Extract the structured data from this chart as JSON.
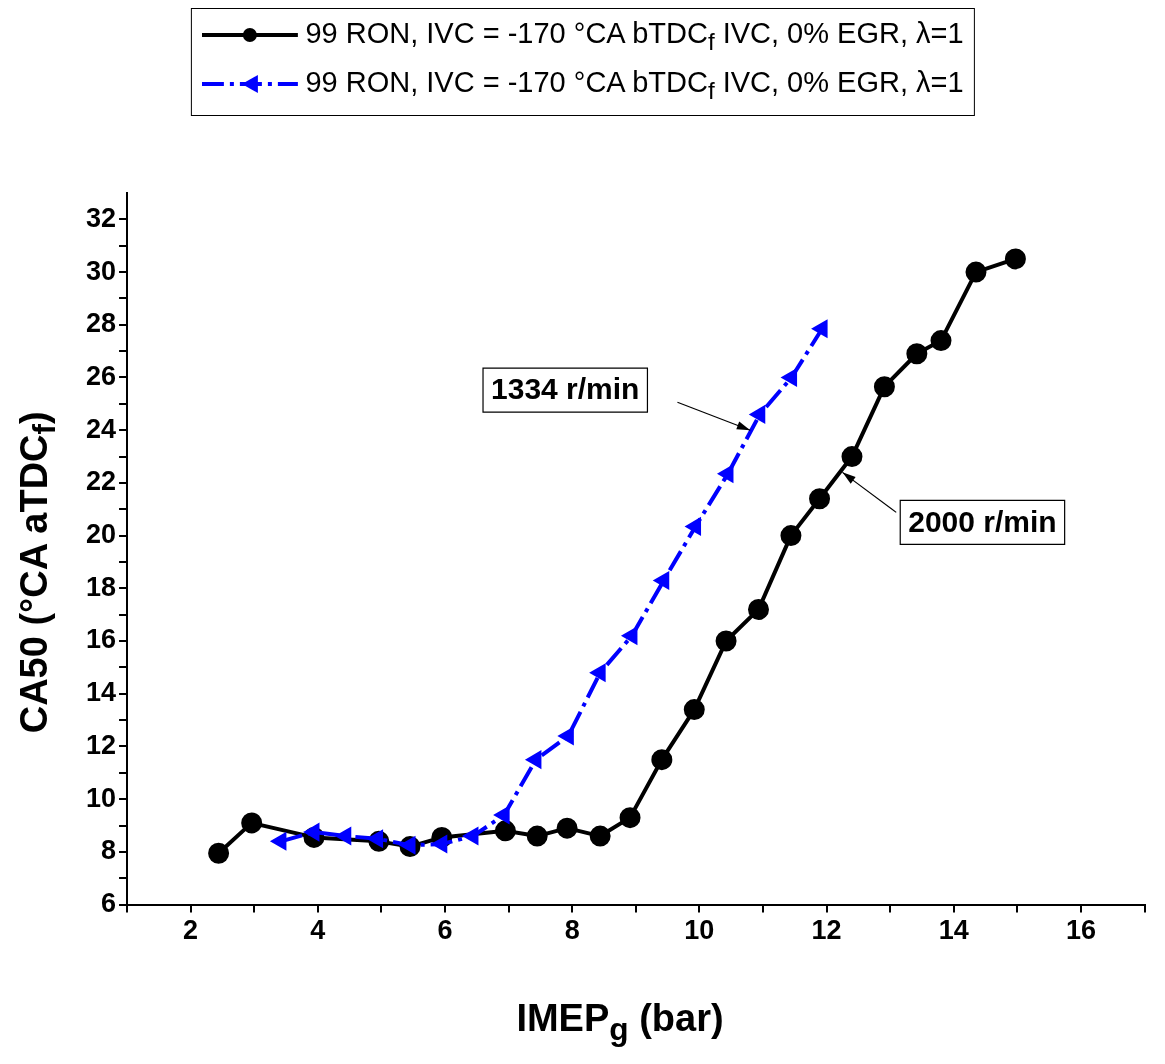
{
  "chart_data": {
    "type": "line",
    "xlabel": "IMEP$_{g}$ (bar)",
    "ylabel": "CA50 (°CA aTDC$_{f}$)",
    "xlim": [
      1,
      17
    ],
    "xticks": [
      {
        "value": 1,
        "label": null
      },
      2,
      {
        "value": 3,
        "label": null
      },
      4,
      {
        "value": 5,
        "label": null
      },
      6,
      {
        "value": 7,
        "label": null
      },
      8,
      {
        "value": 9,
        "label": null
      },
      10,
      {
        "value": 11,
        "label": null
      },
      12,
      {
        "value": 13,
        "label": null
      },
      14,
      {
        "value": 15,
        "label": null
      },
      16,
      {
        "value": 17,
        "label": null
      }
    ],
    "ylim": [
      6,
      33
    ],
    "yticks": [
      6,
      {
        "value": 7,
        "label": null
      },
      8,
      {
        "value": 9,
        "label": null
      },
      10,
      {
        "value": 11,
        "label": null
      },
      12,
      {
        "value": 13,
        "label": null
      },
      14,
      {
        "value": 15,
        "label": null
      },
      16,
      {
        "value": 17,
        "label": null
      },
      18,
      {
        "value": 19,
        "label": null
      },
      20,
      {
        "value": 21,
        "label": null
      },
      22,
      {
        "value": 23,
        "label": null
      },
      24,
      {
        "value": 25,
        "label": null
      },
      26,
      {
        "value": 27,
        "label": null
      },
      28,
      {
        "value": 29,
        "label": null
      },
      30,
      {
        "value": 31,
        "label": null
      },
      32
    ],
    "grid": false,
    "legend": "top",
    "series": [
      {
        "name": "99 RON, IVC = -170 °CA bTDC$_{f}$ IVC, 0% EGR, λ=1",
        "color": "#000000",
        "marker": "circle",
        "line_style": "solid",
        "x": [
          2.44,
          2.96,
          3.94,
          4.96,
          5.45,
          5.95,
          6.95,
          7.45,
          7.92,
          8.44,
          8.91,
          9.41,
          9.92,
          10.42,
          10.93,
          11.44,
          11.89,
          12.4,
          12.91,
          13.42,
          13.8,
          14.35,
          14.97
        ],
        "values": [
          7.95,
          9.1,
          8.55,
          8.4,
          8.2,
          8.55,
          8.8,
          8.6,
          8.9,
          8.6,
          9.3,
          11.5,
          13.4,
          16.0,
          17.2,
          20.0,
          21.4,
          23.0,
          25.65,
          26.9,
          27.4,
          30.0,
          30.5
        ]
      },
      {
        "name": "99 RON, IVC = -170 °CA bTDC$_{f}$ IVC, 0% EGR, λ=1",
        "color": "#0000ff",
        "marker": "triangle",
        "line_style": "dashed",
        "x": [
          3.42,
          3.94,
          4.44,
          4.94,
          5.45,
          5.95,
          6.44,
          6.93,
          7.43,
          7.94,
          8.44,
          8.94,
          9.44,
          9.94,
          10.45,
          10.95,
          11.45,
          11.93
        ],
        "values": [
          8.4,
          8.75,
          8.6,
          8.5,
          8.25,
          8.3,
          8.6,
          9.4,
          11.5,
          12.4,
          14.8,
          16.2,
          18.3,
          20.35,
          22.35,
          24.6,
          26.0,
          27.85
        ]
      }
    ],
    "annotations": [
      {
        "text": "1334 r/min",
        "x": 10.8,
        "y": 24.0
      },
      {
        "text": "2000 r/min",
        "x": 12.25,
        "y": 22.4
      }
    ]
  }
}
